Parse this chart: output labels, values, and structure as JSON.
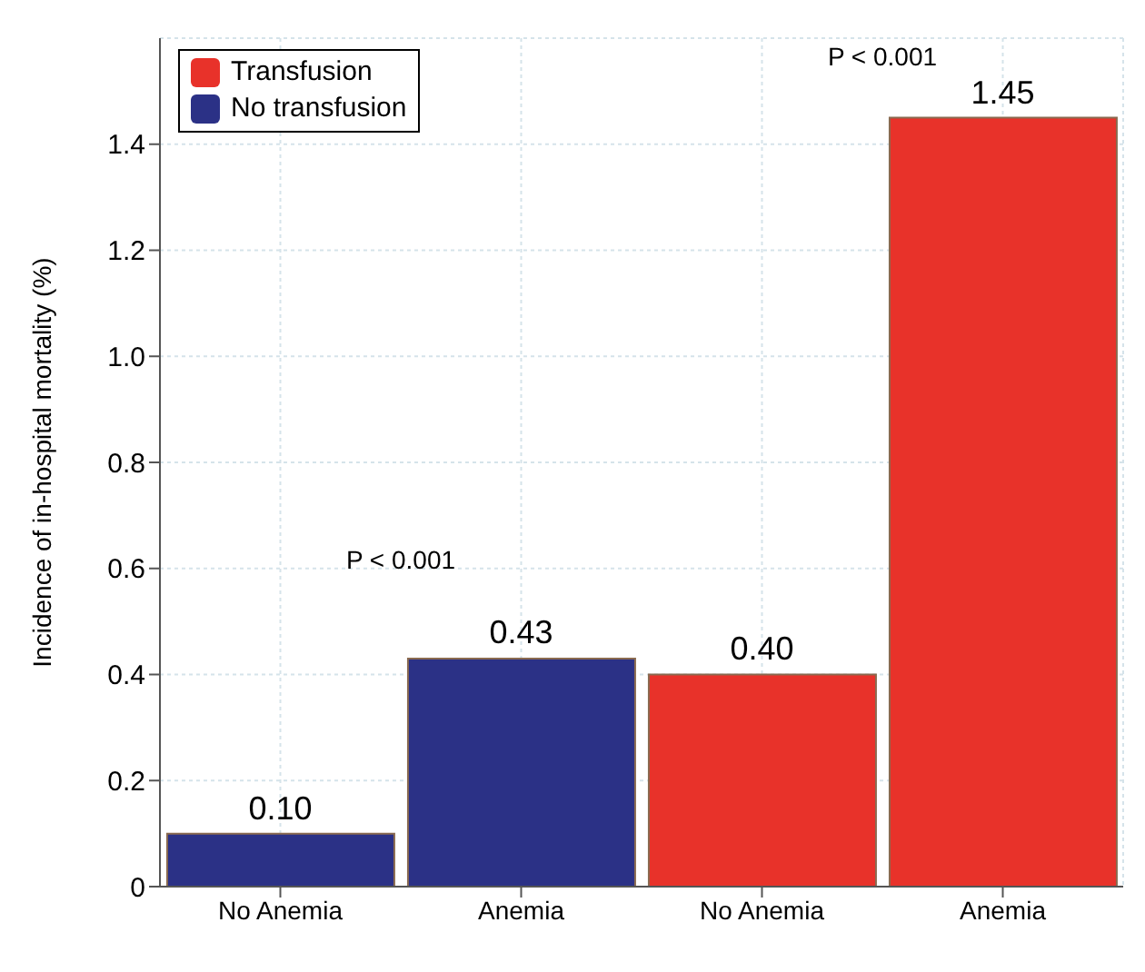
{
  "chart_data": {
    "type": "bar",
    "ylabel": "Incidence of in-hospital mortality (%)",
    "categories": [
      "No Anemia",
      "Anemia",
      "No Anemia",
      "Anemia"
    ],
    "series": [
      {
        "name": "Transfusion",
        "color": "#e8322a",
        "values": [
          null,
          null,
          0.4,
          1.45
        ],
        "value_labels": [
          null,
          null,
          "0.40",
          "1.45"
        ]
      },
      {
        "name": "No transfusion",
        "color": "#2b3186",
        "values": [
          0.1,
          0.43,
          null,
          null
        ],
        "value_labels": [
          "0.10",
          "0.43",
          null,
          null
        ]
      }
    ],
    "ylim": [
      0,
      1.6
    ],
    "yticks": [
      0,
      0.2,
      0.4,
      0.6,
      0.8,
      {
        "value": 1,
        "label": "1.0"
      },
      1.2,
      1.4
    ],
    "grid": true,
    "legend": "top left",
    "annotations": [
      "P < 0.001",
      "P < 0.001"
    ]
  }
}
